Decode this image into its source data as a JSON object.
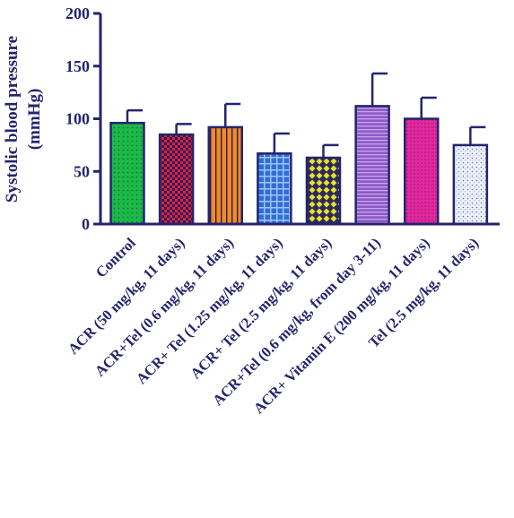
{
  "chart_data": {
    "type": "bar",
    "title": "",
    "xlabel": "",
    "ylabel": [
      "Systolic blood pressure",
      "(mmHg)"
    ],
    "ylim": [
      0,
      200
    ],
    "yticks": [
      0,
      50,
      100,
      150,
      200
    ],
    "grid": false,
    "error_bars": "one-sided upward",
    "categories": [
      "Control",
      "ACR (50 mg/kg, 11 days)",
      "ACR+Tel (0.6 mg/kg, 11 days)",
      "ACR+ Tel (1.25 mg/kg, 11 days)",
      "ACR+ Tel (2.5 mg/kg, 11 days)",
      "ACR+Tel (0.6 mg/kg, from day 3-11)",
      "ACR+ Vitamin E (200 mg/kg, 11 days)",
      "Tel (2.5 mg/kg, 11 days)"
    ],
    "values": [
      96,
      85,
      92,
      67,
      63,
      112,
      100,
      75
    ],
    "errors": [
      12,
      10,
      22,
      19,
      12,
      31,
      20,
      17
    ],
    "colors": [
      "#1db84a",
      "#e0243a",
      "#f08a24",
      "#2f6fd6",
      "#e8e02a",
      "#8e5ac8",
      "#e0289e",
      "#c9d2ee"
    ],
    "patterns": [
      "dots",
      "checker",
      "vertical-stripes",
      "grid",
      "diamonds",
      "horizontal-stripes",
      "fine-dots",
      "speckle"
    ],
    "axis_color": "#24246e"
  }
}
